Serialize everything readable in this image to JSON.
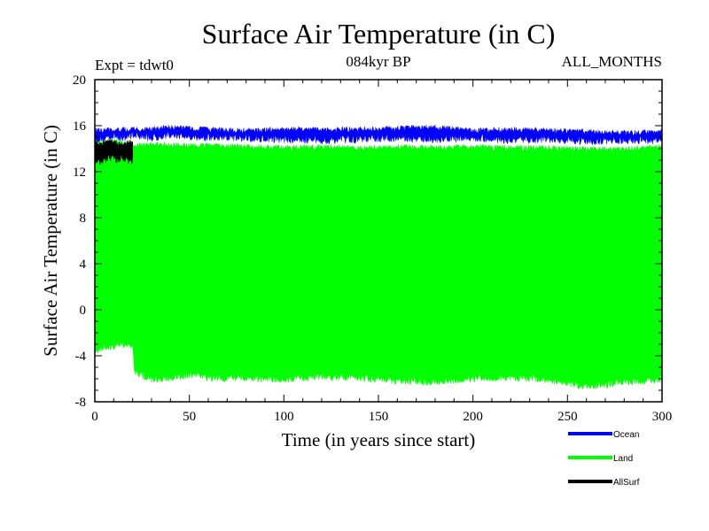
{
  "chart_data": {
    "type": "area",
    "title": "Surface Air Temperature (in C)",
    "subtitle": "084kyr BP",
    "left_annotation": "Expt = tdwt0",
    "right_annotation": "ALL_MONTHS",
    "xlabel": "Time (in years since start)",
    "ylabel": "Surface Air Temperature (in C)",
    "xlim": [
      0,
      300
    ],
    "ylim": [
      -8,
      20
    ],
    "x_ticks": [
      "0",
      "50",
      "100",
      "150",
      "200",
      "250",
      "300"
    ],
    "y_ticks": [
      "-8",
      "-4",
      "0",
      "4",
      "8",
      "12",
      "16",
      "20"
    ],
    "grid": false,
    "legend_position": "bottom-right",
    "series": [
      {
        "name": "Ocean",
        "color": "#0000ff",
        "x": [
          0,
          2,
          5,
          10,
          15,
          20,
          30,
          40,
          50,
          60,
          80,
          100,
          120,
          140,
          160,
          180,
          200,
          220,
          240,
          260,
          280,
          300
        ],
        "min": [
          14.3,
          14.5,
          14.6,
          14.8,
          14.6,
          14.9,
          14.6,
          14.9,
          14.7,
          14.6,
          14.6,
          14.5,
          14.4,
          14.5,
          14.6,
          14.5,
          14.6,
          14.4,
          14.5,
          14.3,
          14.4,
          14.4
        ],
        "max": [
          15.8,
          15.9,
          15.9,
          15.8,
          15.9,
          15.9,
          15.9,
          16.1,
          16.0,
          15.9,
          15.8,
          15.9,
          15.9,
          15.9,
          16.0,
          16.1,
          15.8,
          15.9,
          15.8,
          15.7,
          15.6,
          15.7
        ]
      },
      {
        "name": "Land",
        "color": "#00ff00",
        "x": [
          0,
          2,
          5,
          10,
          15,
          19,
          20,
          21,
          25,
          30,
          40,
          50,
          60,
          80,
          100,
          120,
          140,
          160,
          180,
          200,
          220,
          240,
          260,
          280,
          300
        ],
        "min": [
          -4.0,
          -3.8,
          -3.6,
          -3.5,
          -3.3,
          -3.4,
          -3.5,
          -5.8,
          -6.0,
          -6.4,
          -6.2,
          -6.0,
          -6.2,
          -6.3,
          -6.4,
          -6.1,
          -6.2,
          -6.5,
          -6.6,
          -6.3,
          -6.2,
          -6.4,
          -7.0,
          -6.6,
          -6.4
        ],
        "max": [
          14.8,
          14.7,
          14.8,
          14.9,
          14.7,
          14.6,
          14.5,
          14.6,
          14.5,
          14.6,
          14.6,
          14.5,
          14.5,
          14.4,
          14.3,
          14.4,
          14.3,
          14.4,
          14.3,
          14.4,
          14.3,
          14.3,
          14.2,
          14.2,
          14.4
        ]
      },
      {
        "name": "AllSurf",
        "color": "#000000",
        "x": [
          0,
          3,
          6,
          9,
          12,
          15,
          18,
          20
        ],
        "min": [
          12.4,
          12.6,
          12.8,
          12.9,
          12.7,
          12.9,
          12.6,
          12.7
        ],
        "max": [
          14.9,
          14.7,
          14.8,
          14.9,
          14.7,
          14.6,
          14.8,
          14.7
        ]
      }
    ]
  }
}
